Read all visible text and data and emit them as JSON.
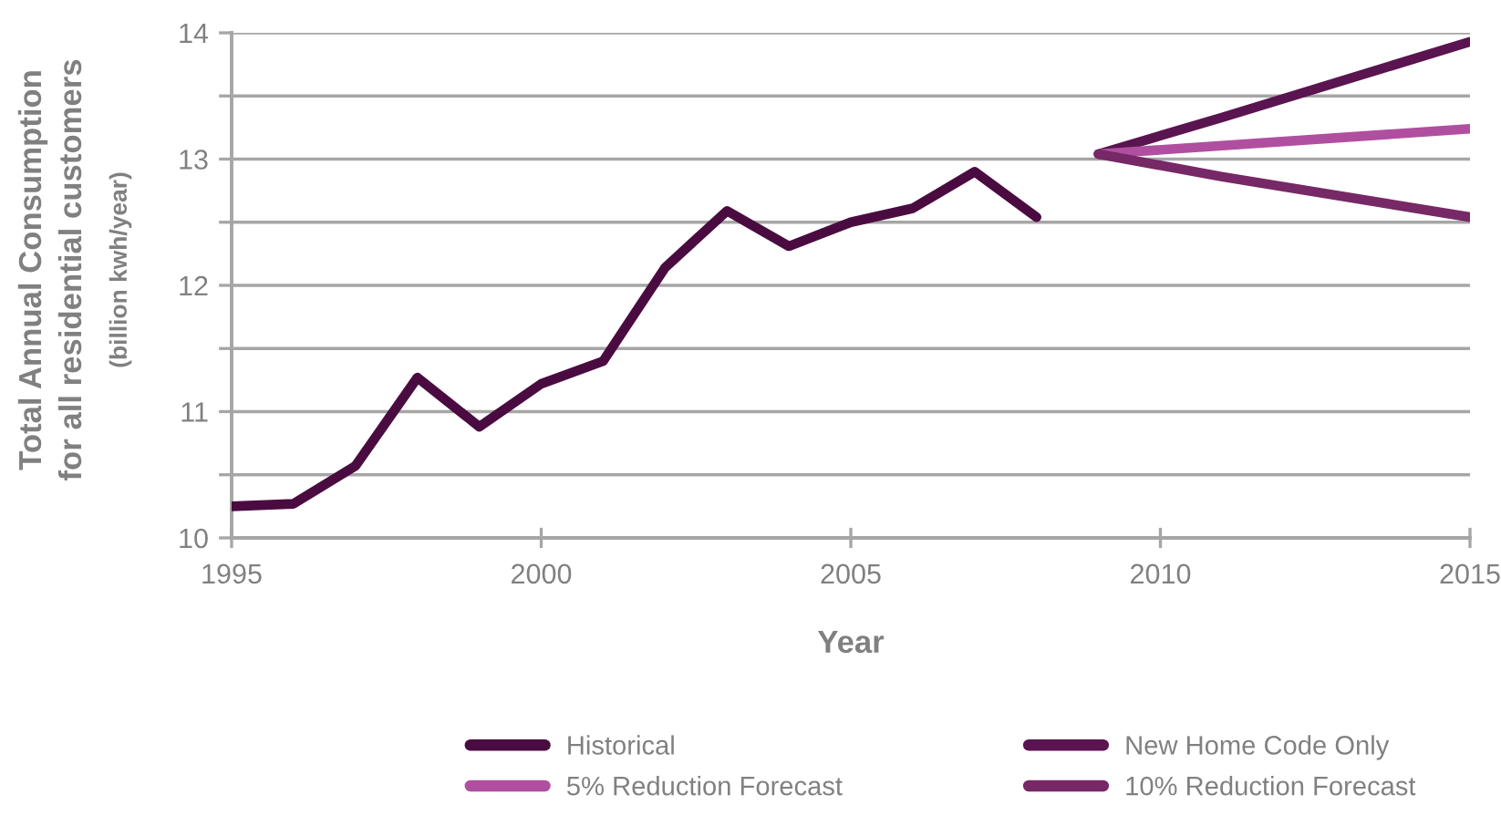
{
  "chart_data": {
    "type": "line",
    "xlabel": "Year",
    "ylabel": "Total Annual Consumption\nfor all residential customers\n(billion kwh/year)",
    "xlim": [
      1995,
      2015
    ],
    "xticks": [
      1995,
      2000,
      2005,
      2010,
      2015
    ],
    "ylim": [
      10,
      14
    ],
    "yticks": [
      10,
      {
        "value": 10.5,
        "label": null
      },
      11,
      {
        "value": 11.5,
        "label": null
      },
      12,
      {
        "value": 12.5,
        "label": null
      },
      13,
      {
        "value": 13.5,
        "label": null
      },
      14
    ],
    "grid": "y",
    "legend": "bottom",
    "marker": "none",
    "line_style": "solid",
    "series": [
      {
        "name": "Historical",
        "color": "#4a0c40",
        "x": [
          1995,
          1996,
          1997,
          1998,
          1999,
          2000,
          2001,
          2002,
          2003,
          2004,
          2005,
          2006,
          2007,
          2008
        ],
        "values": [
          10.25,
          10.27,
          10.57,
          11.27,
          10.88,
          11.22,
          11.4,
          12.14,
          12.59,
          12.31,
          12.5,
          12.61,
          12.9,
          12.54
        ]
      },
      {
        "name": "New Home Code Only",
        "color": "#5a1450",
        "x": [
          2009,
          2011,
          2015
        ],
        "values": [
          13.04,
          13.33,
          13.93
        ]
      },
      {
        "name": "5% Reduction Forecast",
        "color": "#b04fa0",
        "x": [
          2009,
          2015
        ],
        "values": [
          13.04,
          13.24
        ]
      },
      {
        "name": "10% Reduction Forecast",
        "color": "#772866",
        "x": [
          2009,
          2011,
          2015
        ],
        "values": [
          13.04,
          12.86,
          12.54
        ]
      }
    ]
  }
}
